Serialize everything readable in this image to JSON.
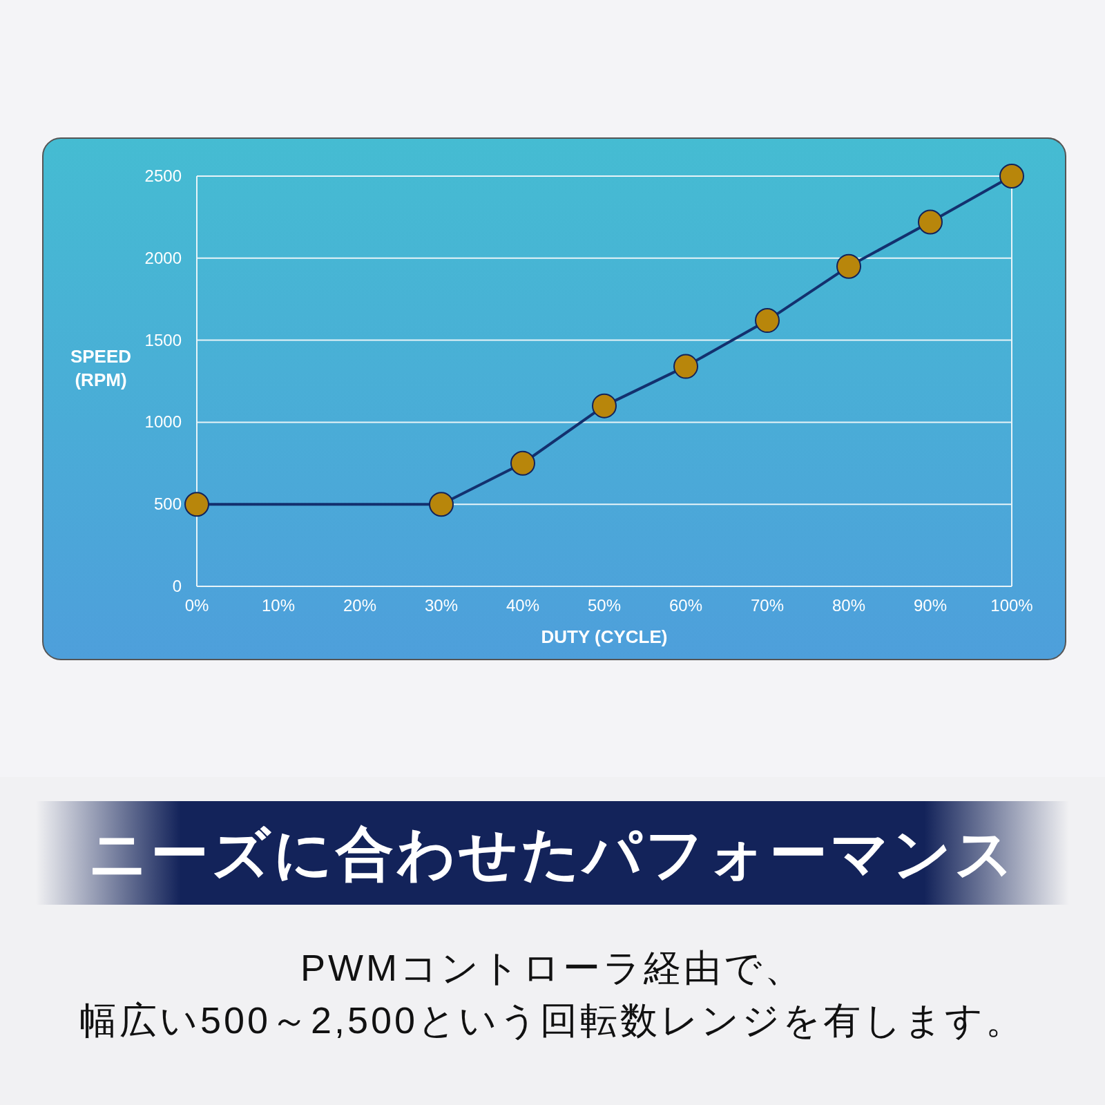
{
  "chart_data": {
    "type": "line",
    "title": "ニーズに合わせたパフォーマンス",
    "annotations": [
      "PWMコントローラ経由で、",
      "幅広い500～2,500という回転数レンジを有します。"
    ],
    "xlabel": "DUTY (CYCLE)",
    "ylabel": "SPEED\n(RPM)",
    "x": [
      0,
      30,
      40,
      50,
      60,
      70,
      80,
      90,
      100
    ],
    "series": [
      {
        "color": "#b8860b",
        "values": [
          500,
          500,
          750,
          1100,
          1340,
          1620,
          1950,
          2220,
          2500
        ]
      }
    ],
    "xlim": [
      0,
      100
    ],
    "xticks": [
      {
        "value": 0,
        "label": "0%"
      },
      {
        "value": 10,
        "label": "10%"
      },
      {
        "value": 20,
        "label": "20%"
      },
      {
        "value": 30,
        "label": "30%"
      },
      {
        "value": 40,
        "label": "40%"
      },
      {
        "value": 50,
        "label": "50%"
      },
      {
        "value": 60,
        "label": "60%"
      },
      {
        "value": 70,
        "label": "70%"
      },
      {
        "value": 80,
        "label": "80%"
      },
      {
        "value": 90,
        "label": "90%"
      },
      {
        "value": 100,
        "label": "100%"
      }
    ],
    "ylim": [
      0,
      2500
    ],
    "yticks": [
      0,
      500,
      1000,
      1500,
      2000,
      2500
    ],
    "grid": "y",
    "marker": "circle",
    "line_style": "solid"
  }
}
